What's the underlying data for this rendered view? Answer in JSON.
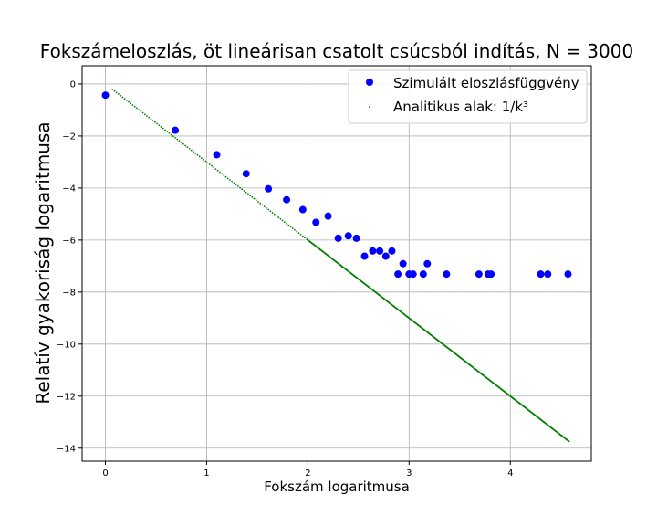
{
  "chart_data": {
    "type": "scatter",
    "title": "Fokszámeloszlás, öt lineárisan csatolt csúcsból indítás, N = 3000",
    "xlabel": "Fokszám logaritmusa",
    "ylabel": "Relatív gyakoriság logaritmusa",
    "xlim": [
      -0.23,
      4.8
    ],
    "ylim": [
      -14.5,
      0.7
    ],
    "xticks": [
      0,
      1,
      2,
      3,
      4
    ],
    "yticks": [
      0,
      -2,
      -4,
      -6,
      -8,
      -10,
      -12,
      -14
    ],
    "grid": true,
    "legend_position": "top-right",
    "series": [
      {
        "name": "Szimulált eloszlásfüggvény",
        "marker": "circle",
        "color": "#0000ff",
        "points": [
          [
            0.0,
            -0.43
          ],
          [
            0.69,
            -1.78
          ],
          [
            1.1,
            -2.72
          ],
          [
            1.39,
            -3.45
          ],
          [
            1.61,
            -4.03
          ],
          [
            1.79,
            -4.45
          ],
          [
            1.95,
            -4.83
          ],
          [
            2.08,
            -5.32
          ],
          [
            2.2,
            -5.08
          ],
          [
            2.3,
            -5.93
          ],
          [
            2.4,
            -5.84
          ],
          [
            2.48,
            -5.93
          ],
          [
            2.56,
            -6.62
          ],
          [
            2.64,
            -6.42
          ],
          [
            2.71,
            -6.42
          ],
          [
            2.77,
            -6.62
          ],
          [
            2.83,
            -6.42
          ],
          [
            2.89,
            -7.31
          ],
          [
            2.94,
            -6.91
          ],
          [
            3.0,
            -7.31
          ],
          [
            3.04,
            -7.31
          ],
          [
            3.14,
            -7.31
          ],
          [
            3.18,
            -6.91
          ],
          [
            3.37,
            -7.31
          ],
          [
            3.69,
            -7.31
          ],
          [
            3.78,
            -7.31
          ],
          [
            3.81,
            -7.31
          ],
          [
            4.3,
            -7.31
          ],
          [
            4.37,
            -7.31
          ],
          [
            4.57,
            -7.31
          ]
        ]
      },
      {
        "name": "Analitikus alak: 1/k³",
        "marker": "dot",
        "color": "#008000",
        "function": "y = -3x",
        "x_range": [
          0.07,
          4.58
        ]
      }
    ]
  }
}
